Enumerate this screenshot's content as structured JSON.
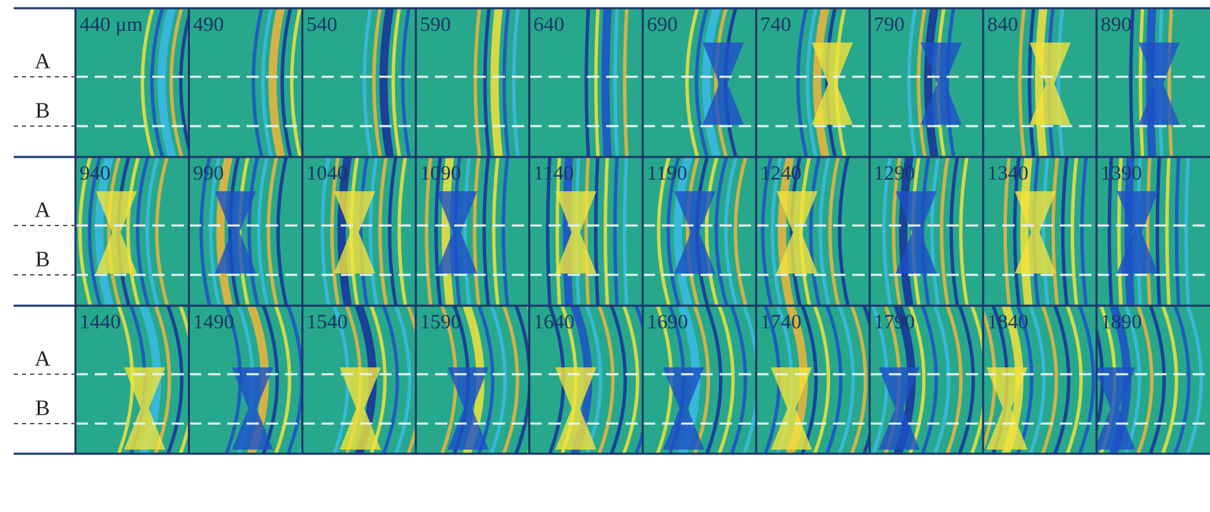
{
  "rows": [
    {
      "row_labels": [
        "A",
        "B"
      ],
      "panels": [
        "440 μm",
        "490",
        "540",
        "590",
        "640",
        "690",
        "740",
        "790",
        "840",
        "890"
      ]
    },
    {
      "row_labels": [
        "A",
        "B"
      ],
      "panels": [
        "940",
        "990",
        "1040",
        "1090",
        "1140",
        "1190",
        "1240",
        "1290",
        "1340",
        "1390"
      ]
    },
    {
      "row_labels": [
        "A",
        "B"
      ],
      "panels": [
        "1440",
        "1490",
        "1540",
        "1590",
        "1640",
        "1690",
        "1740",
        "1790",
        "1840",
        "1890"
      ]
    }
  ]
}
